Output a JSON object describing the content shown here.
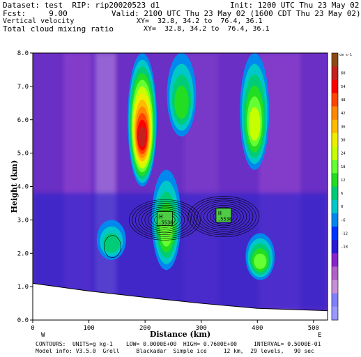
{
  "header": {
    "dataset": "Dataset: test  RIP: rip20020523 d1",
    "init": "Init: 1200 UTC Thu 23 May 02",
    "fcst": "Fcst:     9.00",
    "valid": "Valid: 2100 UTC Thu 23 May 02 (1600 CDT Thu 23 May 02)",
    "field1": "Vertical velocity",
    "xy1": "XY=  32.8, 34.2 to  76.4, 36.1",
    "field2": "Total cloud mixing ratio",
    "xy2": "XY=  32.8, 34.2 to  76.4, 36.1"
  },
  "footer": {
    "contours": "CONTOURS:  UNITS=g kg-1    LOW= 0.0000E+00  HIGH= 0.7600E+00     INTERVAL= 0.5000E-01",
    "model_info": "Model info: V3.5.0  Grell     Blackadar  Simple ice     12 km,  29 levels,   90 sec"
  },
  "plot_labels": {
    "left_end": "W",
    "right_end": "E",
    "high_marker_1": "H",
    "high_marker_1_value": ".5538",
    "high_marker_2": "H",
    "high_marker_2_value": ".5538"
  },
  "colorbar": {
    "units": "cm s-1",
    "ticks": [
      "60",
      "54",
      "48",
      "42",
      "36",
      "30",
      "24",
      "18",
      "12",
      "6",
      "0",
      "-6",
      "-12",
      "-18"
    ],
    "colors": [
      "#8b4a14",
      "#c42020",
      "#ff0000",
      "#ff4400",
      "#ff8800",
      "#ffbb00",
      "#eeee00",
      "#c8ff00",
      "#66ff33",
      "#22dd22",
      "#00cc77",
      "#00c8c8",
      "#0088ee",
      "#0033ff",
      "#2a1ad8",
      "#8822cc",
      "#b060c8",
      "#c88ed8",
      "#8080ff",
      "#9999ff"
    ]
  },
  "chart_data": {
    "type": "heatmap",
    "title": "Vertical velocity",
    "subtitle": "Total cloud mixing ratio",
    "xlabel": "Distance (km)",
    "ylabel": "Height (km)",
    "xlim": [
      0,
      525
    ],
    "ylim": [
      0,
      8
    ],
    "xticks": [
      0,
      100,
      200,
      300,
      400,
      500
    ],
    "yticks": [
      0.0,
      1.0,
      2.0,
      3.0,
      4.0,
      5.0,
      6.0,
      7.0,
      8.0
    ],
    "ytick_labels": [
      "0.0",
      "1.0",
      "2.0",
      "3.0",
      "4.0",
      "5.0",
      "6.0",
      "7.0",
      "8.0"
    ],
    "grid": false,
    "velocity_units": "cm s-1",
    "updraft_cores": [
      {
        "x": 195,
        "height_top": 8.0,
        "height_bottom": 4.0,
        "max_value": 60
      },
      {
        "x": 238,
        "height_top": 4.5,
        "height_bottom": 1.5,
        "max_value": 18
      },
      {
        "x": 265,
        "height_top": 8.0,
        "height_bottom": 5.5,
        "max_value": 12
      },
      {
        "x": 395,
        "height_top": 8.0,
        "height_bottom": 4.5,
        "max_value": 24
      },
      {
        "x": 405,
        "height_top": 2.6,
        "height_bottom": 1.2,
        "max_value": 18
      },
      {
        "x": 140,
        "height_top": 3.0,
        "height_bottom": 1.8,
        "max_value": 6
      }
    ],
    "cloud_maxima": [
      {
        "label": "H",
        "value": 0.5538,
        "x": 235,
        "height": 3.0
      },
      {
        "label": "H",
        "value": 0.5538,
        "x": 340,
        "height": 3.1
      }
    ],
    "terrain_height": [
      {
        "x": 0,
        "h": 1.1
      },
      {
        "x": 100,
        "h": 0.87
      },
      {
        "x": 200,
        "h": 0.68
      },
      {
        "x": 300,
        "h": 0.5
      },
      {
        "x": 400,
        "h": 0.35
      },
      {
        "x": 525,
        "h": 0.28
      }
    ]
  }
}
